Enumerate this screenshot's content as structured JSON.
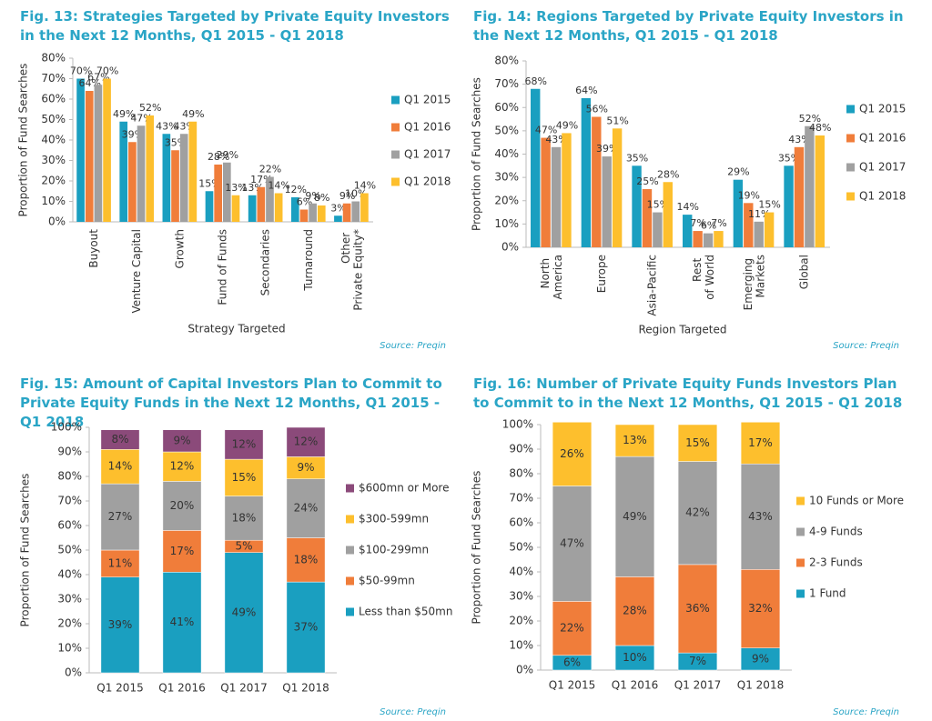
{
  "chart_data": [
    {
      "type": "bar",
      "title": "Fig. 13: Strategies Targeted by Private Equity Investors in the Next 12 Months, Q1 2015 - Q1 2018",
      "y_label": "Proportion of Fund Searches",
      "x_label": "Strategy Targeted",
      "source": "Source: Preqin",
      "categories": [
        "Buyout",
        "Venture Capital",
        "Growth",
        "Fund of Funds",
        "Secondaries",
        "Turnaround",
        "Other Private Equity*"
      ],
      "series": [
        {
          "name": "Q1 2015",
          "color": "#1a9fc0",
          "values": [
            70,
            49,
            43,
            15,
            13,
            12,
            3
          ],
          "value_labels": [
            "70%",
            "49%",
            "43%",
            "15%",
            "13%",
            "12%",
            "3%"
          ]
        },
        {
          "name": "Q1 2016",
          "color": "#f07d3a",
          "values": [
            64,
            39,
            35,
            28,
            17,
            6,
            9
          ],
          "value_labels": [
            "64%",
            "39%",
            "35%",
            "28%",
            "17%",
            "6%",
            "9%"
          ]
        },
        {
          "name": "Q1 2017",
          "color": "#a0a0a0",
          "values": [
            67,
            47,
            43,
            29,
            22,
            9,
            10
          ],
          "value_labels": [
            "67%",
            "47%",
            "43%",
            "29%",
            "22%",
            "9%",
            "10%"
          ]
        },
        {
          "name": "Q1 2018",
          "color": "#fdbf2d",
          "values": [
            70,
            52,
            49,
            13,
            14,
            8,
            14
          ],
          "value_labels": [
            "70%",
            "52%",
            "49%",
            "13%",
            "14%",
            "8%",
            "14%"
          ]
        }
      ],
      "ylim": [
        0,
        80
      ],
      "yticks": [
        {
          "value": 0,
          "label": "0%"
        },
        {
          "value": 10,
          "label": "10%"
        },
        {
          "value": 20,
          "label": "20%"
        },
        {
          "value": 30,
          "label": "30%"
        },
        {
          "value": 40,
          "label": "40%"
        },
        {
          "value": 50,
          "label": "50%"
        },
        {
          "value": 60,
          "label": "60%"
        },
        {
          "value": 70,
          "label": "70%"
        },
        {
          "value": 80,
          "label": "80%"
        }
      ],
      "grid": false,
      "legend": "right"
    },
    {
      "type": "bar",
      "title": "Fig. 14: Regions Targeted by Private Equity Investors in the Next 12 Months, Q1 2015 - Q1 2018",
      "y_label": "Proportion of Fund Searches",
      "x_label": "Region Targeted",
      "source": "Source: Preqin",
      "categories": [
        "North America",
        "Europe",
        "Asia-Pacific",
        "Rest of World",
        "Emerging Markets",
        "Global"
      ],
      "series": [
        {
          "name": "Q1 2015",
          "color": "#1a9fc0",
          "values": [
            68,
            64,
            35,
            14,
            29,
            35
          ],
          "value_labels": [
            "68%",
            "64%",
            "35%",
            "14%",
            "29%",
            "35%"
          ]
        },
        {
          "name": "Q1 2016",
          "color": "#f07d3a",
          "values": [
            47,
            56,
            25,
            7,
            19,
            43
          ],
          "value_labels": [
            "47%",
            "56%",
            "25%",
            "7%",
            "19%",
            "43%"
          ]
        },
        {
          "name": "Q1 2017",
          "color": "#a0a0a0",
          "values": [
            43,
            39,
            15,
            6,
            11,
            52
          ],
          "value_labels": [
            "43%",
            "39%",
            "15%",
            "6%",
            "11%",
            "52%"
          ]
        },
        {
          "name": "Q1 2018",
          "color": "#fdbf2d",
          "values": [
            49,
            51,
            28,
            7,
            15,
            48
          ],
          "value_labels": [
            "49%",
            "51%",
            "28%",
            "7%",
            "15%",
            "48%"
          ]
        }
      ],
      "ylim": [
        0,
        80
      ],
      "yticks": [
        {
          "value": 0,
          "label": "0%"
        },
        {
          "value": 10,
          "label": "10%"
        },
        {
          "value": 20,
          "label": "20%"
        },
        {
          "value": 30,
          "label": "30%"
        },
        {
          "value": 40,
          "label": "40%"
        },
        {
          "value": 50,
          "label": "50%"
        },
        {
          "value": 60,
          "label": "60%"
        },
        {
          "value": 70,
          "label": "70%"
        },
        {
          "value": 80,
          "label": "80%"
        }
      ],
      "grid": false,
      "legend": "right"
    },
    {
      "type": "stacked_bar",
      "title": "Fig. 15: Amount of Capital Investors Plan to Commit to Private Equity Funds in the Next 12 Months, Q1 2015 - Q1 2018",
      "y_label": "Proportion of Fund Searches",
      "source": "Source: Preqin",
      "categories": [
        "Q1 2015",
        "Q1 2016",
        "Q1 2017",
        "Q1 2018"
      ],
      "series": [
        {
          "name": "Less than $50mn",
          "color": "#1a9fc0",
          "values": [
            39,
            41,
            49,
            37
          ],
          "value_labels": [
            "39%",
            "41%",
            "49%",
            "37%"
          ]
        },
        {
          "name": "$50-99mn",
          "color": "#f07d3a",
          "values": [
            11,
            17,
            5,
            18
          ],
          "value_labels": [
            "11%",
            "17%",
            "5%",
            "18%"
          ]
        },
        {
          "name": "$100-299mn",
          "color": "#a0a0a0",
          "values": [
            27,
            20,
            18,
            24
          ],
          "value_labels": [
            "27%",
            "20%",
            "18%",
            "24%"
          ]
        },
        {
          "name": "$300-599mn",
          "color": "#fdbf2d",
          "values": [
            14,
            12,
            15,
            9
          ],
          "value_labels": [
            "14%",
            "12%",
            "15%",
            "9%"
          ]
        },
        {
          "name": "$600mn or More",
          "color": "#8b4a7a",
          "values": [
            8,
            9,
            12,
            12
          ],
          "value_labels": [
            "8%",
            "9%",
            "12%",
            "12%"
          ]
        }
      ],
      "ylim": [
        0,
        100
      ],
      "yticks": [
        {
          "value": 0,
          "label": "0%"
        },
        {
          "value": 10,
          "label": "10%"
        },
        {
          "value": 20,
          "label": "20%"
        },
        {
          "value": 30,
          "label": "30%"
        },
        {
          "value": 40,
          "label": "40%"
        },
        {
          "value": 50,
          "label": "50%"
        },
        {
          "value": 60,
          "label": "60%"
        },
        {
          "value": 70,
          "label": "70%"
        },
        {
          "value": 80,
          "label": "80%"
        },
        {
          "value": 90,
          "label": "90%"
        },
        {
          "value": 100,
          "label": "100%"
        }
      ],
      "grid": false,
      "legend": "right"
    },
    {
      "type": "stacked_bar",
      "title": "Fig. 16: Number of Private Equity Funds Investors Plan to Commit to in the Next 12 Months, Q1 2015 - Q1 2018",
      "y_label": "Proportion of Fund Searches",
      "source": "Source: Preqin",
      "categories": [
        "Q1 2015",
        "Q1 2016",
        "Q1 2017",
        "Q1 2018"
      ],
      "series": [
        {
          "name": "1 Fund",
          "color": "#1a9fc0",
          "values": [
            6,
            10,
            7,
            9
          ],
          "value_labels": [
            "6%",
            "10%",
            "7%",
            "9%"
          ]
        },
        {
          "name": "2-3 Funds",
          "color": "#f07d3a",
          "values": [
            22,
            28,
            36,
            32
          ],
          "value_labels": [
            "22%",
            "28%",
            "36%",
            "32%"
          ]
        },
        {
          "name": "4-9 Funds",
          "color": "#a0a0a0",
          "values": [
            47,
            49,
            42,
            43
          ],
          "value_labels": [
            "47%",
            "49%",
            "42%",
            "43%"
          ]
        },
        {
          "name": "10 Funds or More",
          "color": "#fdbf2d",
          "values": [
            26,
            13,
            15,
            17
          ],
          "value_labels": [
            "26%",
            "13%",
            "15%",
            "17%"
          ]
        }
      ],
      "ylim": [
        0,
        100
      ],
      "yticks": [
        {
          "value": 0,
          "label": "0%"
        },
        {
          "value": 10,
          "label": "10%"
        },
        {
          "value": 20,
          "label": "20%"
        },
        {
          "value": 30,
          "label": "30%"
        },
        {
          "value": 40,
          "label": "40%"
        },
        {
          "value": 50,
          "label": "50%"
        },
        {
          "value": 60,
          "label": "60%"
        },
        {
          "value": 70,
          "label": "70%"
        },
        {
          "value": 80,
          "label": "80%"
        },
        {
          "value": 90,
          "label": "90%"
        },
        {
          "value": 100,
          "label": "100%"
        }
      ],
      "grid": false,
      "legend": "right"
    }
  ]
}
